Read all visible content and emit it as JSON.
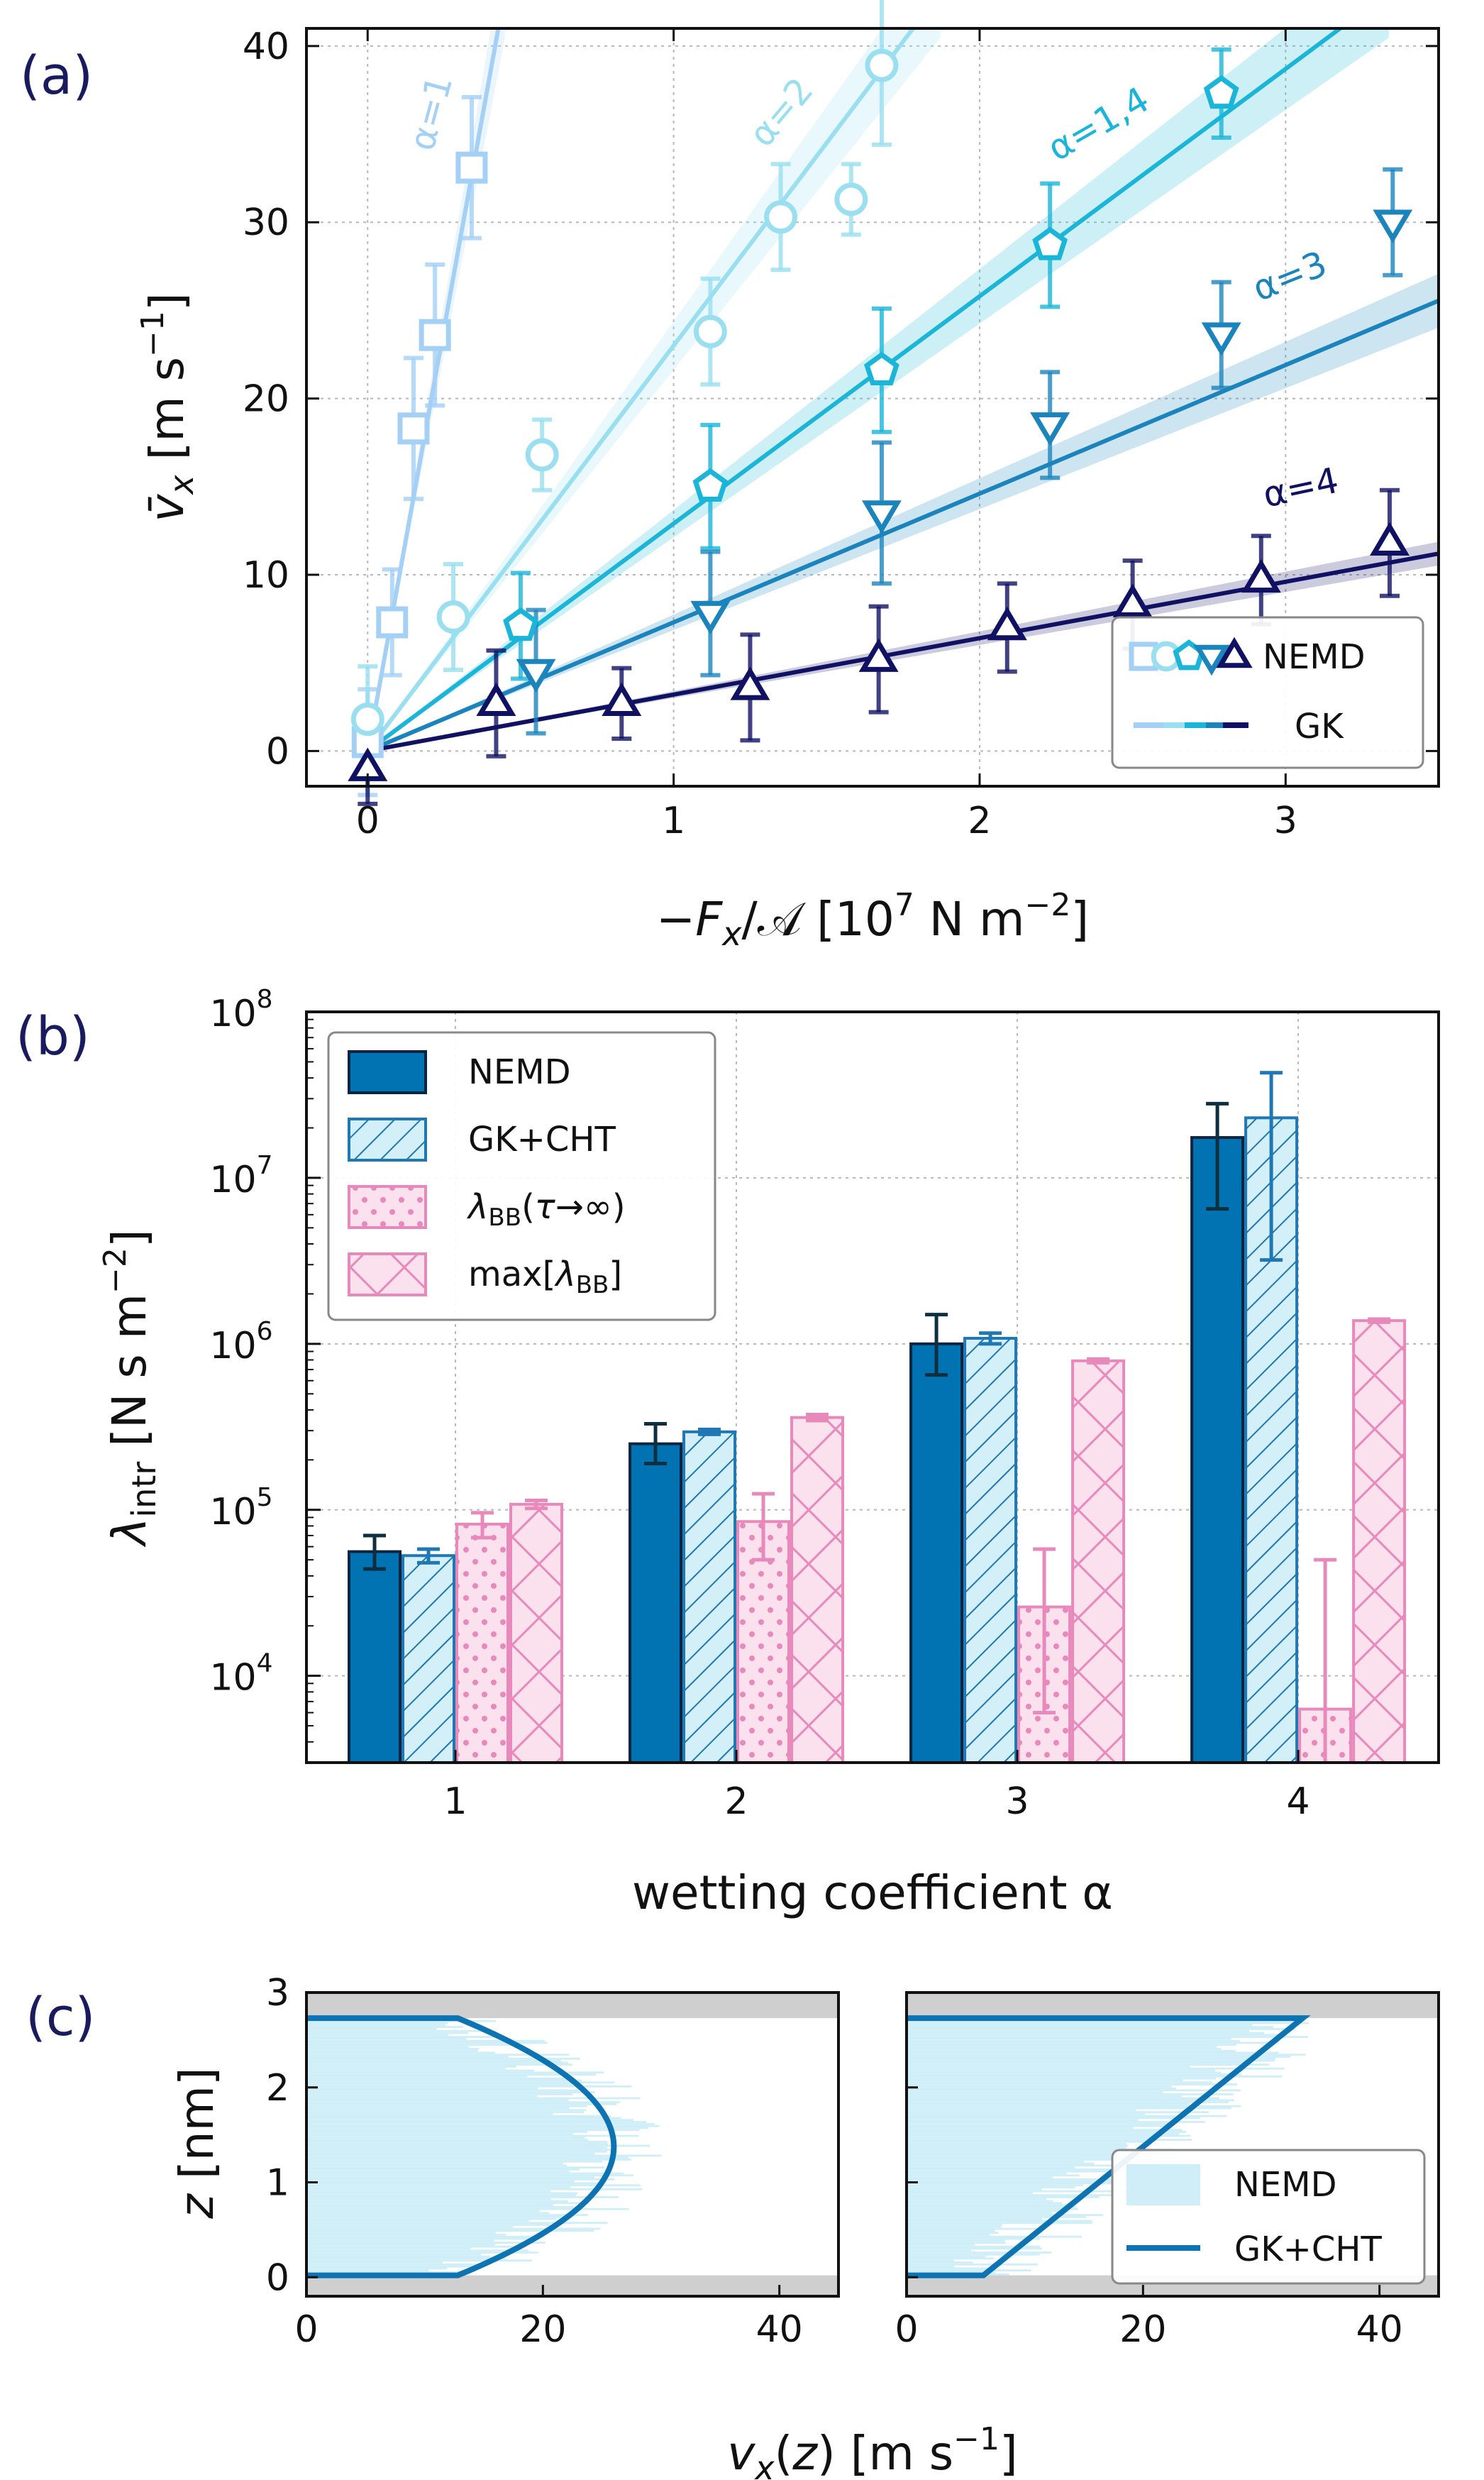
{
  "chart_data": [
    {
      "panel": "(a)",
      "type": "scatter",
      "xlabel": "−F_x/𝒜 [10^7 N m^−2]",
      "ylabel": "v̄_x [m s^−1]",
      "xlim": [
        -0.2,
        3.5
      ],
      "ylim": [
        -2,
        41
      ],
      "xticks": [
        "0",
        "1",
        "2",
        "3"
      ],
      "yticks": [
        "0",
        "10",
        "20",
        "30",
        "40"
      ],
      "legend": [
        "NEMD",
        "GK"
      ],
      "series": [
        {
          "name": "α=1",
          "color": "#a4d0f5",
          "marker": "square",
          "slope": 96,
          "x": [
            0,
            0.08,
            0.15,
            0.22,
            0.34
          ],
          "y": [
            0.5,
            7.3,
            18.3,
            23.6,
            33.1
          ],
          "err": [
            3,
            3,
            4,
            4,
            4
          ]
        },
        {
          "name": "α=2",
          "color": "#99dff0",
          "marker": "circle",
          "slope": 23,
          "x": [
            0,
            0.28,
            0.57,
            1.12,
            1.35,
            1.58,
            1.68
          ],
          "y": [
            1.8,
            7.6,
            16.8,
            23.8,
            30.3,
            31.3,
            38.9
          ],
          "err": [
            3,
            3,
            2,
            3,
            3,
            2,
            4.5
          ]
        },
        {
          "name": "α=1,4",
          "color": "#1ab5d8",
          "marker": "pentagon",
          "slope": 12.9,
          "x": [
            0.5,
            1.12,
            1.68,
            2.23,
            2.79
          ],
          "y": [
            7.1,
            15.0,
            21.6,
            28.7,
            37.3
          ],
          "err": [
            3,
            3.5,
            3.5,
            3.5,
            2.5
          ]
        },
        {
          "name": "α=3",
          "color": "#1c84bd",
          "marker": "triangle-down",
          "slope": 7.3,
          "x": [
            0.55,
            1.12,
            1.68,
            2.23,
            2.79,
            3.35
          ],
          "y": [
            4.5,
            7.8,
            13.5,
            18.5,
            23.6,
            30.0
          ],
          "err": [
            3.5,
            3.5,
            4,
            3,
            3,
            3
          ]
        },
        {
          "name": "α=4",
          "color": "#111164",
          "marker": "triangle-up",
          "slope": 3.2,
          "x": [
            0,
            0.42,
            0.83,
            1.25,
            1.67,
            2.09,
            2.5,
            2.92,
            3.34
          ],
          "y": [
            -1,
            2.7,
            2.7,
            3.6,
            5.2,
            7.0,
            8.3,
            9.7,
            11.8
          ],
          "err": [
            2,
            3,
            2,
            3,
            3,
            2.5,
            2.5,
            2.5,
            3
          ]
        }
      ]
    },
    {
      "panel": "(b)",
      "type": "bar",
      "xlabel": "wetting coefficient α",
      "ylabel": "λ_intr [N s m^−2]",
      "yscale": "log",
      "ylim": [
        3000,
        100000000
      ],
      "yticks": [
        "10",
        "10",
        "10",
        "10",
        "10"
      ],
      "ytick_exp": [
        "4",
        "5",
        "6",
        "7",
        "8"
      ],
      "categories": [
        "1",
        "2",
        "3",
        "4"
      ],
      "series": [
        {
          "name": "NEMD",
          "values": [
            56000,
            250000,
            1000000,
            17500000
          ],
          "err": [
            [
              44000,
              70000
            ],
            [
              190000,
              330000
            ],
            [
              650000,
              1500000
            ],
            [
              6500000,
              28000000
            ]
          ]
        },
        {
          "name": "GK+CHT",
          "values": [
            53000,
            295000,
            1080000,
            23000000
          ],
          "err": [
            [
              48000,
              58000
            ],
            [
              285000,
              305000
            ],
            [
              1000000,
              1160000
            ],
            [
              3200000,
              43000000
            ]
          ]
        },
        {
          "name": "λBB(τ→∞)",
          "values": [
            82000,
            85000,
            26000,
            6300
          ],
          "err": [
            [
              68000,
              96000
            ],
            [
              50000,
              125000
            ],
            [
              6000,
              58000
            ],
            [
              1000,
              50000
            ]
          ]
        },
        {
          "name": "max[λBB]",
          "values": [
            108000,
            360000,
            790000,
            1380000
          ],
          "err": [
            [
              102000,
              114000
            ],
            [
              345000,
              375000
            ],
            [
              770000,
              810000
            ],
            [
              1350000,
              1410000
            ]
          ]
        }
      ],
      "legend": [
        "NEMD",
        "GK+CHT",
        "λBB(τ→∞)",
        "max[λBB]"
      ]
    },
    {
      "panel": "(c)",
      "type": "line",
      "xlabel": "v_x(z) [m s^−1]",
      "ylabel": "z [nm]",
      "xlim": [
        0,
        45
      ],
      "ylim": [
        -0.2,
        3.0
      ],
      "xticks": [
        "0",
        "20",
        "40"
      ],
      "yticks": [
        "0",
        "1",
        "2",
        "3"
      ],
      "legend": [
        "NEMD",
        "GK+CHT"
      ],
      "left_profile": {
        "type": "parabolic",
        "wall_low": 0.02,
        "wall_high": 2.73,
        "v_wall": 12.8,
        "v_max": 26.0
      },
      "right_profile": {
        "type": "linear",
        "wall_low": 0.02,
        "wall_high": 2.73,
        "v_low": 6.5,
        "v_high": 33.5
      }
    }
  ]
}
